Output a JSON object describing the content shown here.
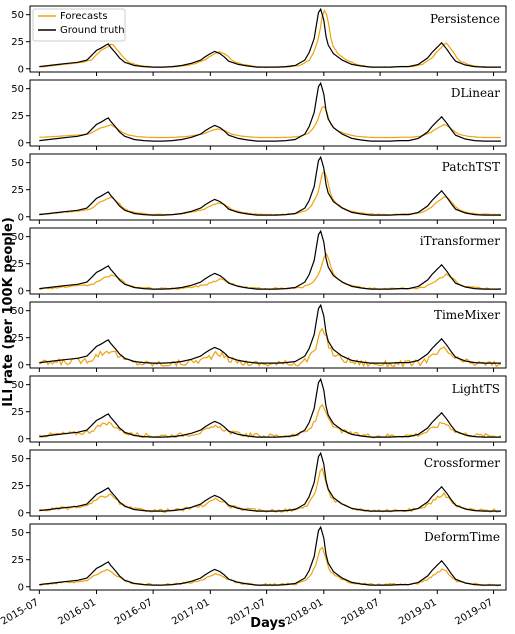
{
  "chart_data": {
    "type": "line",
    "ylabel": "ILI rate (per 100K people)",
    "xlabel": "Days",
    "legend": {
      "placement": "top-left",
      "entries": [
        "Forecasts",
        "Ground truth"
      ]
    },
    "colors": {
      "forecasts": "#f0a30a",
      "ground_truth": "#000000"
    },
    "xlim": [
      "2015-06-01",
      "2019-08-10"
    ],
    "ylim": [
      -3,
      58
    ],
    "x_ticks": [
      "2015-07",
      "2016-01",
      "2016-07",
      "2017-01",
      "2017-07",
      "2018-01",
      "2018-07",
      "2019-01",
      "2019-07"
    ],
    "y_ticks": [
      0,
      25,
      50
    ],
    "ground_truth": {
      "name": "Ground truth",
      "x": [
        "2015-07-01",
        "2015-08-01",
        "2015-09-01",
        "2015-10-01",
        "2015-11-01",
        "2015-12-01",
        "2015-12-15",
        "2016-01-01",
        "2016-01-15",
        "2016-02-01",
        "2016-02-08",
        "2016-02-15",
        "2016-03-01",
        "2016-03-15",
        "2016-04-01",
        "2016-05-01",
        "2016-06-01",
        "2016-07-01",
        "2016-08-01",
        "2016-09-01",
        "2016-10-01",
        "2016-11-01",
        "2016-12-01",
        "2016-12-15",
        "2017-01-01",
        "2017-01-15",
        "2017-02-01",
        "2017-02-15",
        "2017-03-01",
        "2017-04-01",
        "2017-05-01",
        "2017-06-01",
        "2017-07-01",
        "2017-08-01",
        "2017-09-01",
        "2017-10-01",
        "2017-11-01",
        "2017-11-15",
        "2017-12-01",
        "2017-12-08",
        "2017-12-15",
        "2017-12-22",
        "2018-01-01",
        "2018-01-08",
        "2018-01-15",
        "2018-02-01",
        "2018-03-01",
        "2018-04-01",
        "2018-05-01",
        "2018-06-01",
        "2018-07-01",
        "2018-08-01",
        "2018-09-01",
        "2018-10-01",
        "2018-11-01",
        "2018-12-01",
        "2018-12-15",
        "2019-01-01",
        "2019-01-08",
        "2019-01-15",
        "2019-02-01",
        "2019-02-15",
        "2019-03-01",
        "2019-04-01",
        "2019-05-01",
        "2019-06-01",
        "2019-07-01",
        "2019-07-25"
      ],
      "values": [
        2,
        3,
        4,
        5,
        6,
        8,
        12,
        17,
        19,
        22,
        23,
        20,
        15,
        10,
        6,
        3,
        2,
        1.5,
        1.5,
        2,
        3,
        5,
        8,
        11,
        14,
        16,
        14,
        11,
        7,
        4,
        2.5,
        1.5,
        1.5,
        1.5,
        2,
        3,
        8,
        15,
        28,
        40,
        52,
        55,
        45,
        30,
        22,
        14,
        8,
        4,
        2.5,
        1.5,
        1.5,
        1.5,
        2,
        2,
        4,
        10,
        15,
        20,
        22,
        24,
        18,
        12,
        7,
        3.5,
        2,
        1.5,
        1.5,
        1.5
      ]
    },
    "panels": [
      {
        "title": "Persistence",
        "forecast_shift_days": 14,
        "forecast_scale": 1.0,
        "forecast_floor": 0,
        "noise": 0.3
      },
      {
        "title": "DLinear",
        "forecast_shift_days": 10,
        "forecast_scale": 0.55,
        "forecast_floor": 4,
        "noise": 0.0
      },
      {
        "title": "PatchTST",
        "forecast_shift_days": 12,
        "forecast_scale": 0.75,
        "forecast_floor": 1,
        "noise": 0.4
      },
      {
        "title": "iTransformer",
        "forecast_shift_days": 18,
        "forecast_scale": 0.6,
        "forecast_floor": 1,
        "noise": 0.8
      },
      {
        "title": "TimeMixer",
        "forecast_shift_days": 8,
        "forecast_scale": 0.6,
        "forecast_floor": 0,
        "noise": 3.0
      },
      {
        "title": "LightTS",
        "forecast_shift_days": 6,
        "forecast_scale": 0.55,
        "forecast_floor": 2,
        "noise": 2.0
      },
      {
        "title": "Crossformer",
        "forecast_shift_days": 5,
        "forecast_scale": 0.7,
        "forecast_floor": 1,
        "noise": 1.5
      },
      {
        "title": "DeformTime",
        "forecast_shift_days": 4,
        "forecast_scale": 0.65,
        "forecast_floor": 1,
        "noise": 1.0
      }
    ]
  }
}
